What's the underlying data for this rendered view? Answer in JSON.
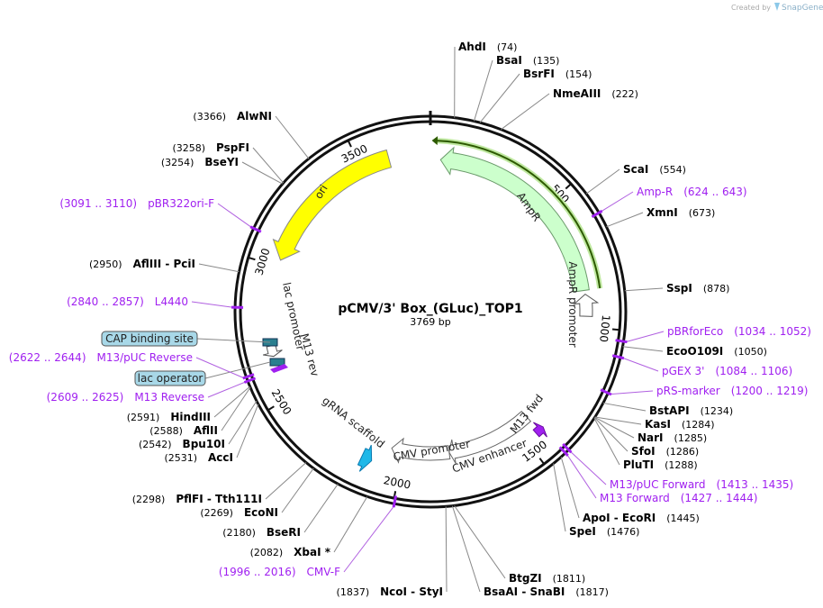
{
  "header": {
    "credit": "Created by",
    "brand": "SnapGene"
  },
  "title": "pCMV/3' Box_(GLuc)_TOP1",
  "length": "3769 bp",
  "ring_ticks": [
    "500",
    "1000",
    "1500",
    "2000",
    "2500",
    "3000",
    "3500"
  ],
  "features": [
    {
      "name": "AmpR"
    },
    {
      "name": "AmpR promoter"
    },
    {
      "name": "ori"
    },
    {
      "name": "lac promoter"
    },
    {
      "name": "M13 rev"
    },
    {
      "name": "CAP binding site"
    },
    {
      "name": "lac operator"
    },
    {
      "name": "M13 fwd"
    },
    {
      "name": "CMV enhancer"
    },
    {
      "name": "CMV promoter"
    },
    {
      "name": "gRNA scaffold"
    }
  ],
  "enzymes": [
    {
      "name": "AhdI",
      "position": "(74)"
    },
    {
      "name": "BsaI",
      "position": "(135)"
    },
    {
      "name": "BsrFI",
      "position": "(154)"
    },
    {
      "name": "NmeAIII",
      "position": "(222)"
    },
    {
      "name": "ScaI",
      "position": "(554)"
    },
    {
      "name": "XmnI",
      "position": "(673)"
    },
    {
      "name": "SspI",
      "position": "(878)"
    },
    {
      "name": "EcoO109I",
      "position": "(1050)"
    },
    {
      "name": "BstAPI",
      "position": "(1234)"
    },
    {
      "name": "KasI",
      "position": "(1284)"
    },
    {
      "name": "NarI",
      "position": "(1285)"
    },
    {
      "name": "SfoI",
      "position": "(1286)"
    },
    {
      "name": "PluTI",
      "position": "(1288)"
    },
    {
      "name": "ApoI  -  EcoRI",
      "position": "(1445)"
    },
    {
      "name": "SpeI",
      "position": "(1476)"
    },
    {
      "name": "BtgZI",
      "position": "(1811)"
    },
    {
      "name": "BsaAI  -  SnaBI",
      "position": "(1817)"
    },
    {
      "name": "NcoI  -  StyI",
      "position": "(1837)"
    },
    {
      "name": "XbaI *",
      "position": "(2082)"
    },
    {
      "name": "BseRI",
      "position": "(2180)"
    },
    {
      "name": "EcoNI",
      "position": "(2269)"
    },
    {
      "name": "PflFI  -  Tth111I",
      "position": "(2298)"
    },
    {
      "name": "AccI",
      "position": "(2531)"
    },
    {
      "name": "Bpu10I",
      "position": "(2542)"
    },
    {
      "name": "AflII",
      "position": "(2588)"
    },
    {
      "name": "HindIII",
      "position": "(2591)"
    },
    {
      "name": "AflIII  -  PciI",
      "position": "(2950)"
    },
    {
      "name": "BseYI",
      "position": "(3254)"
    },
    {
      "name": "PspFI",
      "position": "(3258)"
    },
    {
      "name": "AlwNI",
      "position": "(3366)"
    }
  ],
  "primers": [
    {
      "name": "Amp-R",
      "position": "(624 .. 643)"
    },
    {
      "name": "pBRforEco",
      "position": "(1034 .. 1052)"
    },
    {
      "name": "pGEX 3'",
      "position": "(1084 .. 1106)"
    },
    {
      "name": "pRS-marker",
      "position": "(1200 .. 1219)"
    },
    {
      "name": "M13/pUC Forward",
      "position": "(1413 .. 1435)"
    },
    {
      "name": "M13 Forward",
      "position": "(1427 .. 1444)"
    },
    {
      "name": "CMV-F",
      "position": "(1996 .. 2016)"
    },
    {
      "name": "M13 Reverse",
      "position": "(2609 .. 2625)"
    },
    {
      "name": "M13/pUC Reverse",
      "position": "(2622 .. 2644)"
    },
    {
      "name": "L4440",
      "position": "(2840 .. 2857)"
    },
    {
      "name": "pBR322ori-F",
      "position": "(3091 .. 3110)"
    }
  ]
}
